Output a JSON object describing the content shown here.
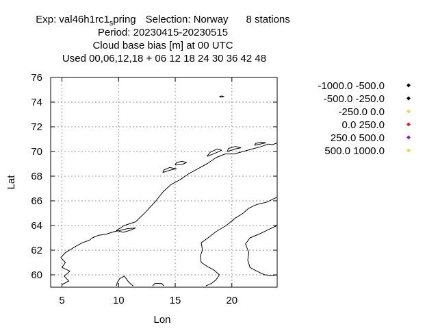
{
  "chart_data": {
    "type": "scatter",
    "title_lines": [
      "Exp: val46h1rc1",
      "Period: 20230415-20230515",
      "Cloud base bias [m] at  00 UTC",
      "Used  00,06,12,18  + 06 12 18 24 30 36 42 48"
    ],
    "title_subscript": "s",
    "title_suffix": "pring",
    "title_selection": "Selection: Norway",
    "title_stations": "8 stations",
    "xlabel": "Lon",
    "ylabel": "Lat",
    "xlim": [
      4,
      24
    ],
    "ylim": [
      59,
      76
    ],
    "xticks": [
      5,
      10,
      15,
      20
    ],
    "xtick_labels": [
      "5",
      "10",
      "15",
      "20"
    ],
    "yticks": [
      60,
      62,
      64,
      66,
      68,
      70,
      72,
      74,
      76
    ],
    "ytick_labels": [
      "60",
      "62",
      "64",
      "66",
      "68",
      "70",
      "72",
      "74",
      "76"
    ],
    "grid": true,
    "legend_position": "right",
    "legend": [
      {
        "label": "-1000.0 -500.0",
        "color": "#000000"
      },
      {
        "label": "-500.0 -250.0",
        "color": "#000000"
      },
      {
        "label": "-250.0 0.0",
        "color": "#f5d23a"
      },
      {
        "label": "0.0 250.0",
        "color": "#e02020"
      },
      {
        "label": "250.0 500.0",
        "color": "#8a16d6"
      },
      {
        "label": "500.0 1000.0",
        "color": "#f5d23a"
      }
    ],
    "points": [],
    "coastlines": [
      [
        [
          7.7,
          63.0
        ],
        [
          8.2,
          63.2
        ],
        [
          8.9,
          63.3
        ],
        [
          9.6,
          63.5
        ],
        [
          10.1,
          63.6
        ],
        [
          10.8,
          63.75
        ],
        [
          11.5,
          63.8
        ],
        [
          11.0,
          63.6
        ],
        [
          10.4,
          63.45
        ],
        [
          9.8,
          63.6
        ],
        [
          10.5,
          64.0
        ],
        [
          11.5,
          64.3
        ],
        [
          12.4,
          65.1
        ],
        [
          12.9,
          65.6
        ],
        [
          13.3,
          66.0
        ],
        [
          13.9,
          66.7
        ],
        [
          14.6,
          67.3
        ],
        [
          15.4,
          67.7
        ],
        [
          16.2,
          68.2
        ],
        [
          17.0,
          68.6
        ],
        [
          17.8,
          69.0
        ],
        [
          18.6,
          69.5
        ],
        [
          19.4,
          69.8
        ],
        [
          20.2,
          69.8
        ],
        [
          21.0,
          70.0
        ],
        [
          21.8,
          70.2
        ],
        [
          22.6,
          70.4
        ],
        [
          23.2,
          70.6
        ],
        [
          23.6,
          70.55
        ],
        [
          24.0,
          70.7
        ]
      ],
      [
        [
          5.0,
          59.2
        ],
        [
          5.6,
          59.5
        ],
        [
          5.2,
          59.9
        ],
        [
          5.7,
          60.3
        ],
        [
          5.0,
          60.6
        ],
        [
          5.3,
          61.0
        ],
        [
          4.9,
          61.4
        ],
        [
          5.3,
          61.8
        ],
        [
          6.2,
          62.3
        ],
        [
          6.8,
          62.6
        ],
        [
          7.4,
          62.8
        ],
        [
          7.7,
          63.0
        ]
      ],
      [
        [
          18.9,
          74.45
        ],
        [
          19.1,
          74.5
        ],
        [
          19.3,
          74.45
        ],
        [
          19.0,
          74.4
        ],
        [
          18.9,
          74.45
        ]
      ],
      [
        [
          15.0,
          68.9
        ],
        [
          15.6,
          68.95
        ],
        [
          16.0,
          69.1
        ],
        [
          15.6,
          69.2
        ],
        [
          15.1,
          69.1
        ],
        [
          15.0,
          68.9
        ]
      ],
      [
        [
          13.9,
          68.3
        ],
        [
          14.6,
          68.5
        ],
        [
          15.1,
          68.6
        ],
        [
          14.5,
          68.7
        ],
        [
          14.0,
          68.5
        ],
        [
          13.9,
          68.3
        ]
      ],
      [
        [
          17.8,
          69.6
        ],
        [
          18.5,
          69.85
        ],
        [
          19.1,
          70.1
        ],
        [
          18.7,
          70.2
        ],
        [
          18.1,
          69.95
        ],
        [
          17.8,
          69.6
        ]
      ],
      [
        [
          19.6,
          70.0
        ],
        [
          20.3,
          70.2
        ],
        [
          20.8,
          70.3
        ],
        [
          20.3,
          70.4
        ],
        [
          19.7,
          70.25
        ],
        [
          19.6,
          70.0
        ]
      ],
      [
        [
          22.0,
          70.5
        ],
        [
          22.5,
          70.6
        ],
        [
          23.0,
          70.7
        ],
        [
          22.6,
          70.75
        ],
        [
          22.1,
          70.65
        ],
        [
          22.0,
          70.5
        ]
      ],
      [
        [
          24.0,
          64.0
        ],
        [
          23.3,
          63.7
        ],
        [
          22.4,
          63.3
        ],
        [
          21.6,
          63.0
        ],
        [
          21.2,
          62.5
        ],
        [
          21.5,
          61.8
        ],
        [
          21.4,
          61.2
        ],
        [
          21.6,
          60.6
        ],
        [
          22.2,
          60.3
        ],
        [
          22.9,
          60.0
        ],
        [
          23.6,
          59.95
        ],
        [
          24.0,
          60.0
        ]
      ],
      [
        [
          24.0,
          66.3
        ],
        [
          23.1,
          65.9
        ],
        [
          22.2,
          65.7
        ],
        [
          21.5,
          65.4
        ],
        [
          21.0,
          65.0
        ],
        [
          20.3,
          64.6
        ],
        [
          19.5,
          64.0
        ],
        [
          18.6,
          63.5
        ],
        [
          17.9,
          63.0
        ],
        [
          17.3,
          62.6
        ],
        [
          17.4,
          62.0
        ],
        [
          17.2,
          61.5
        ],
        [
          17.3,
          61.0
        ],
        [
          17.8,
          60.7
        ],
        [
          18.4,
          60.4
        ],
        [
          18.9,
          60.0
        ],
        [
          18.6,
          59.6
        ],
        [
          18.2,
          59.3
        ],
        [
          17.7,
          59.1
        ]
      ],
      [
        [
          11.3,
          59.1
        ],
        [
          10.9,
          59.4
        ],
        [
          10.5,
          59.9
        ],
        [
          10.1,
          59.7
        ],
        [
          9.9,
          59.4
        ],
        [
          9.8,
          59.1
        ]
      ],
      [
        [
          13.0,
          59.1
        ],
        [
          13.2,
          59.3
        ],
        [
          13.8,
          59.3
        ],
        [
          14.0,
          59.1
        ]
      ]
    ]
  }
}
